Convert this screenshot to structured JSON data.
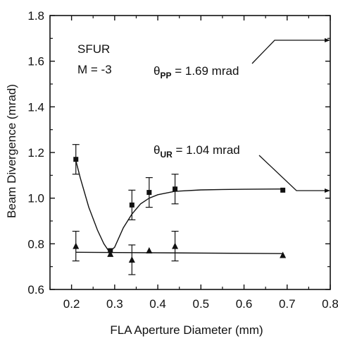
{
  "chart_data": {
    "type": "scatter",
    "title": "",
    "xlabel": "FLA Aperture Diameter (mm)",
    "ylabel": "Beam Divergence (mrad)",
    "xlim": [
      0.15,
      0.8
    ],
    "ylim": [
      0.6,
      1.8
    ],
    "xticks": [
      0.2,
      0.3,
      0.4,
      0.5,
      0.6,
      0.7,
      0.8
    ],
    "yticks": [
      0.6,
      0.8,
      1.0,
      1.2,
      1.4,
      1.6,
      1.8
    ],
    "xtick_labels": [
      "0.2",
      "0.3",
      "0.4",
      "0.5",
      "0.6",
      "0.7",
      "0.8"
    ],
    "ytick_labels": [
      "0.6",
      "0.8",
      "1.0",
      "1.2",
      "1.4",
      "1.6",
      "1.8"
    ],
    "grid": false,
    "annotations": {
      "system": "SFUR",
      "magnification": "M = -3",
      "pp_label": {
        "theta": "θ",
        "sub": "PP",
        "text": " = 1.69 mrad",
        "level": 1.69
      },
      "ur_label": {
        "theta": "θ",
        "sub": "UR",
        "text": " = 1.04 mrad",
        "level": 1.04
      }
    },
    "series": [
      {
        "marker": "square",
        "x": [
          0.21,
          0.29,
          0.34,
          0.38,
          0.44,
          0.69
        ],
        "y": [
          1.17,
          0.77,
          0.97,
          1.025,
          1.04,
          1.035
        ],
        "yerr": [
          0.065,
          0,
          0.065,
          0.065,
          0.065,
          0
        ]
      },
      {
        "marker": "triangle",
        "x": [
          0.21,
          0.29,
          0.34,
          0.38,
          0.44,
          0.69
        ],
        "y": [
          0.79,
          0.755,
          0.73,
          0.77,
          0.79,
          0.75
        ],
        "yerr": [
          0.065,
          0,
          0.065,
          0,
          0.065,
          0
        ]
      }
    ],
    "fit_curves": [
      {
        "x": [
          0.21,
          0.22,
          0.24,
          0.26,
          0.275,
          0.285,
          0.29,
          0.3,
          0.32,
          0.34,
          0.36,
          0.38,
          0.4,
          0.44,
          0.5,
          0.55,
          0.6,
          0.69
        ],
        "y": [
          1.165,
          1.09,
          0.96,
          0.86,
          0.8,
          0.772,
          0.768,
          0.785,
          0.87,
          0.93,
          0.975,
          1.0,
          1.015,
          1.03,
          1.036,
          1.038,
          1.039,
          1.04
        ]
      },
      {
        "x": [
          0.21,
          0.69
        ],
        "y": [
          0.763,
          0.757
        ]
      }
    ]
  }
}
